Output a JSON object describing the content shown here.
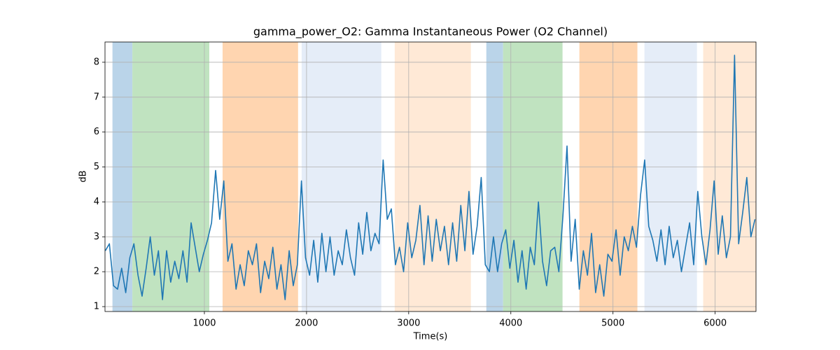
{
  "chart_data": {
    "type": "line",
    "title": "gamma_power_O2: Gamma Instantaneous Power (O2 Channel)",
    "x_label": "Time(s)",
    "y_label": "dB",
    "xlim": [
      27,
      6400
    ],
    "ylim": [
      0.86,
      8.58
    ],
    "xticks": [
      1000,
      2000,
      3000,
      4000,
      5000,
      6000
    ],
    "yticks": [
      1,
      2,
      3,
      4,
      5,
      6,
      7,
      8
    ],
    "grid": true,
    "spans": [
      {
        "start": 100,
        "end": 295,
        "color": "#bad4e9"
      },
      {
        "start": 295,
        "end": 1048,
        "color": "#c0e3c0"
      },
      {
        "start": 1178,
        "end": 1917,
        "color": "#ffd5b0"
      },
      {
        "start": 1952,
        "end": 2732,
        "color": "#e5edf8"
      },
      {
        "start": 2863,
        "end": 3609,
        "color": "#ffe9d6"
      },
      {
        "start": 3760,
        "end": 3924,
        "color": "#bad4e9"
      },
      {
        "start": 3924,
        "end": 4506,
        "color": "#c0e3c0"
      },
      {
        "start": 4671,
        "end": 5239,
        "color": "#ffd5b0"
      },
      {
        "start": 5308,
        "end": 5822,
        "color": "#e5edf8"
      },
      {
        "start": 5883,
        "end": 6400,
        "color": "#ffe9d6"
      }
    ],
    "x": [
      30,
      70,
      110,
      150,
      190,
      230,
      270,
      310,
      350,
      390,
      430,
      470,
      510,
      550,
      590,
      630,
      670,
      710,
      750,
      790,
      830,
      870,
      910,
      950,
      990,
      1030,
      1070,
      1110,
      1150,
      1190,
      1230,
      1270,
      1310,
      1350,
      1390,
      1430,
      1470,
      1510,
      1550,
      1590,
      1630,
      1670,
      1710,
      1750,
      1790,
      1830,
      1870,
      1910,
      1950,
      1990,
      2030,
      2070,
      2110,
      2150,
      2190,
      2230,
      2270,
      2310,
      2350,
      2390,
      2430,
      2470,
      2510,
      2550,
      2590,
      2630,
      2670,
      2710,
      2750,
      2790,
      2830,
      2870,
      2910,
      2950,
      2990,
      3030,
      3070,
      3110,
      3150,
      3190,
      3230,
      3270,
      3310,
      3350,
      3390,
      3430,
      3470,
      3510,
      3550,
      3590,
      3630,
      3670,
      3710,
      3750,
      3790,
      3830,
      3870,
      3910,
      3950,
      3990,
      4030,
      4070,
      4110,
      4150,
      4190,
      4230,
      4270,
      4310,
      4350,
      4390,
      4430,
      4470,
      4510,
      4550,
      4590,
      4630,
      4670,
      4710,
      4750,
      4790,
      4830,
      4870,
      4910,
      4950,
      4990,
      5030,
      5070,
      5110,
      5150,
      5190,
      5230,
      5270,
      5310,
      5350,
      5390,
      5430,
      5470,
      5510,
      5550,
      5590,
      5630,
      5670,
      5710,
      5750,
      5790,
      5830,
      5870,
      5910,
      5950,
      5990,
      6030,
      6070,
      6110,
      6150,
      6190,
      6230,
      6270,
      6310,
      6350,
      6390
    ],
    "series": [
      {
        "color": "#1f77b4",
        "values": [
          2.6,
          2.8,
          1.6,
          1.5,
          2.1,
          1.4,
          2.4,
          2.8,
          1.9,
          1.3,
          2.1,
          3.0,
          1.9,
          2.6,
          1.2,
          2.6,
          1.7,
          2.3,
          1.8,
          2.6,
          1.7,
          3.4,
          2.7,
          2.0,
          2.5,
          2.9,
          3.4,
          4.9,
          3.5,
          4.6,
          2.3,
          2.8,
          1.5,
          2.2,
          1.6,
          2.6,
          2.2,
          2.8,
          1.4,
          2.3,
          1.8,
          2.7,
          1.5,
          2.2,
          1.2,
          2.6,
          1.6,
          2.2,
          4.6,
          2.4,
          1.9,
          2.9,
          1.7,
          3.1,
          2.0,
          3.0,
          1.9,
          2.6,
          2.2,
          3.2,
          2.4,
          1.9,
          3.4,
          2.5,
          3.7,
          2.6,
          3.1,
          2.8,
          5.2,
          3.5,
          3.8,
          2.2,
          2.7,
          2.0,
          3.4,
          2.4,
          2.9,
          3.9,
          2.2,
          3.6,
          2.3,
          3.5,
          2.6,
          3.3,
          2.2,
          3.4,
          2.3,
          3.9,
          2.6,
          4.3,
          2.5,
          3.3,
          4.7,
          2.2,
          2.0,
          3.0,
          2.0,
          2.8,
          3.2,
          2.1,
          2.9,
          1.7,
          2.6,
          1.5,
          2.7,
          2.2,
          4.0,
          2.3,
          1.6,
          2.6,
          2.7,
          2.0,
          3.6,
          5.6,
          2.3,
          3.5,
          1.5,
          2.6,
          1.9,
          3.1,
          1.4,
          2.2,
          1.3,
          2.5,
          2.3,
          3.2,
          1.9,
          3.0,
          2.6,
          3.3,
          2.7,
          4.2,
          5.2,
          3.3,
          2.9,
          2.3,
          3.2,
          2.2,
          3.3,
          2.4,
          2.9,
          2.0,
          2.7,
          3.4,
          2.2,
          4.3,
          3.0,
          2.2,
          3.2,
          4.6,
          2.5,
          3.6,
          2.4,
          3.0,
          8.2,
          2.8,
          3.7,
          4.7,
          3.0,
          3.5
        ]
      }
    ]
  }
}
